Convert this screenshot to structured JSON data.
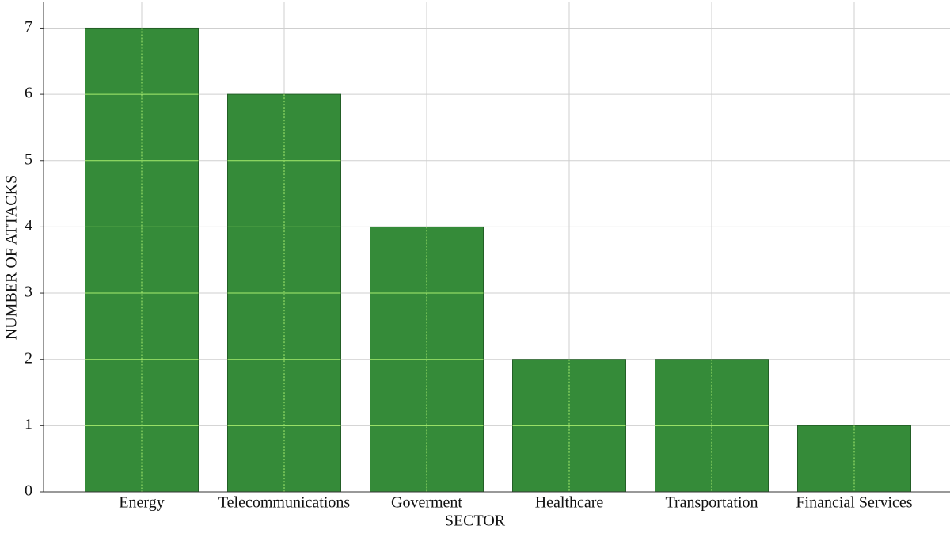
{
  "chart_data": {
    "type": "bar",
    "x_label": "SECTOR",
    "y_label": "NUMBER OF ATTACKS",
    "categories": [
      "Energy",
      "Telecommunications",
      "Goverment",
      "Healthcare",
      "Transportation",
      "Financial Services"
    ],
    "values": [
      7,
      6,
      4,
      2,
      2,
      1
    ],
    "color": "#358b39",
    "ylim": [
      0,
      7.4
    ],
    "yticks": [
      0,
      1,
      2,
      3,
      4,
      5,
      6,
      7
    ],
    "grid": true
  }
}
